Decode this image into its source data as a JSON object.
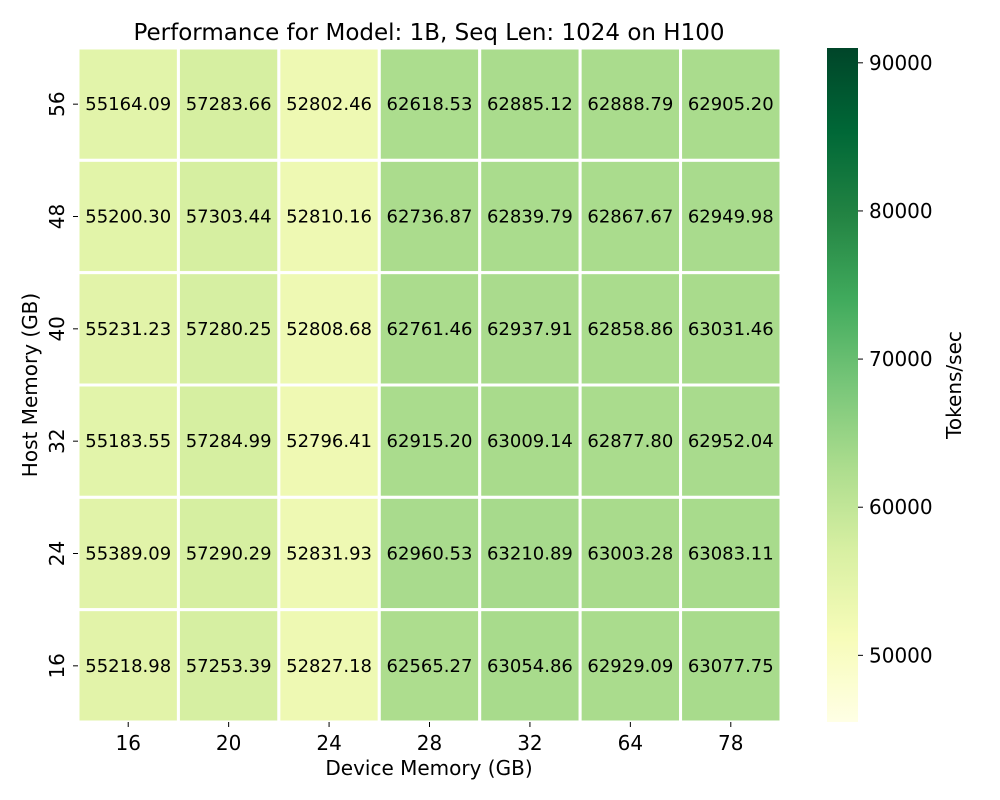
{
  "chart_data": {
    "type": "heatmap",
    "title": "Performance for Model: 1B, Seq Len: 1024 on H100",
    "xlabel": "Device Memory (GB)",
    "ylabel": "Host Memory (GB)",
    "x_categories": [
      "16",
      "20",
      "24",
      "28",
      "32",
      "64",
      "78"
    ],
    "y_categories": [
      "56",
      "48",
      "40",
      "32",
      "24",
      "16"
    ],
    "values": [
      [
        55164.09,
        57283.66,
        52802.46,
        62618.53,
        62885.12,
        62888.79,
        62905.2
      ],
      [
        55200.3,
        57303.44,
        52810.16,
        62736.87,
        62839.79,
        62867.67,
        62949.98
      ],
      [
        55231.23,
        57280.25,
        52808.68,
        62761.46,
        62937.91,
        62858.86,
        63031.46
      ],
      [
        55183.55,
        57284.99,
        52796.41,
        62915.2,
        63009.14,
        62877.8,
        62952.04
      ],
      [
        55389.09,
        57290.29,
        52831.93,
        62960.53,
        63210.89,
        63003.28,
        63083.11
      ],
      [
        55218.98,
        57253.39,
        52827.18,
        62565.27,
        63054.86,
        62929.09,
        63077.75
      ]
    ],
    "colorbar": {
      "label": "Tokens/sec",
      "range": [
        45500,
        91000
      ],
      "ticks": [
        50000,
        60000,
        70000,
        80000,
        90000
      ],
      "colormap": "YlGn"
    },
    "grid": false
  }
}
